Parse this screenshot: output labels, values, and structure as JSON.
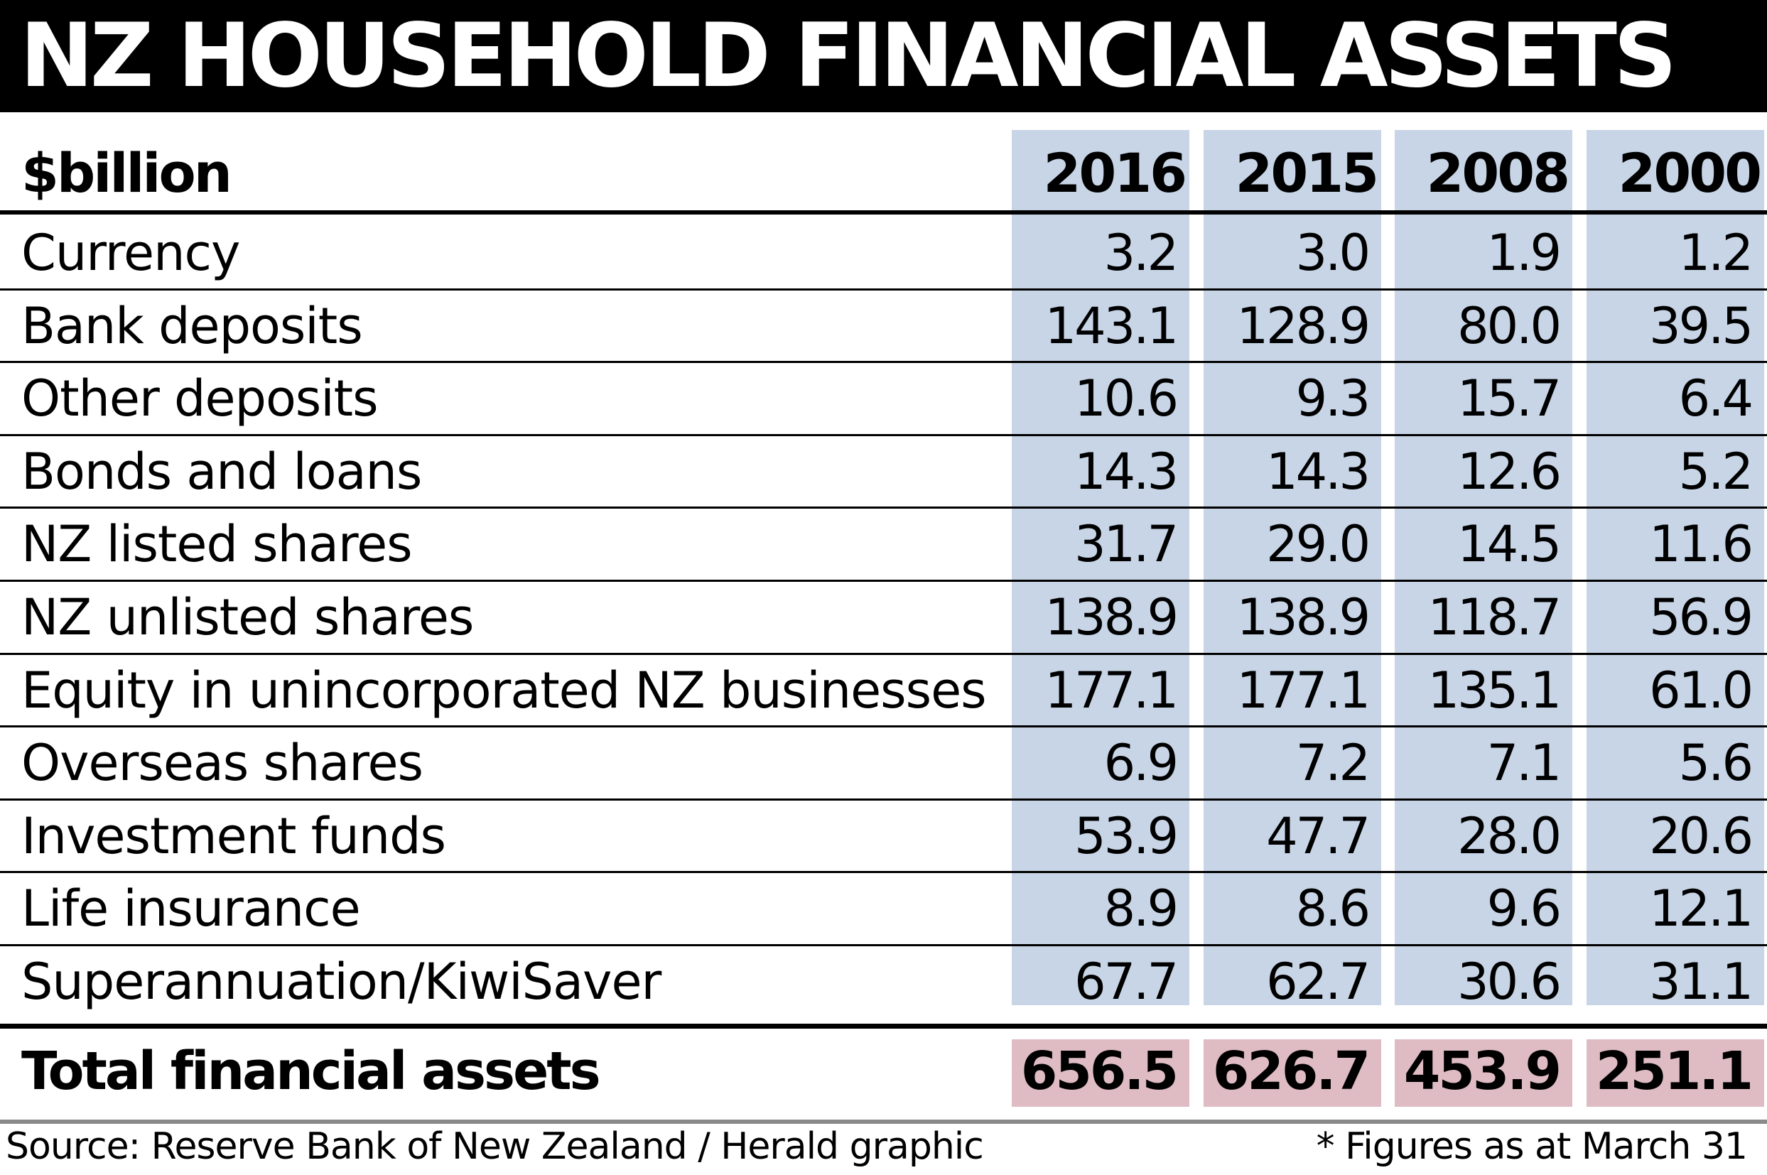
{
  "chart_data": {
    "type": "table",
    "title": "NZ HOUSEHOLD FINANCIAL ASSETS",
    "unit_label": "$billion",
    "columns": [
      "2016",
      "2015",
      "2008",
      "2000"
    ],
    "rows": [
      {
        "label": "Currency",
        "values": [
          "3.2",
          "3.0",
          "1.9",
          "1.2"
        ]
      },
      {
        "label": "Bank deposits",
        "values": [
          "143.1",
          "128.9",
          "80.0",
          "39.5"
        ]
      },
      {
        "label": "Other deposits",
        "values": [
          "10.6",
          "9.3",
          "15.7",
          "6.4"
        ]
      },
      {
        "label": "Bonds and loans",
        "values": [
          "14.3",
          "14.3",
          "12.6",
          "5.2"
        ]
      },
      {
        "label": "NZ listed shares",
        "values": [
          "31.7",
          "29.0",
          "14.5",
          "11.6"
        ]
      },
      {
        "label": "NZ unlisted shares",
        "values": [
          "138.9",
          "138.9",
          "118.7",
          "56.9"
        ]
      },
      {
        "label": "Equity in unincorporated NZ businesses",
        "values": [
          "177.1",
          "177.1",
          "135.1",
          "61.0"
        ]
      },
      {
        "label": "Overseas shares",
        "values": [
          "6.9",
          "7.2",
          "7.1",
          "5.6"
        ]
      },
      {
        "label": "Investment funds",
        "values": [
          "53.9",
          "47.7",
          "28.0",
          "20.6"
        ]
      },
      {
        "label": "Life insurance",
        "values": [
          "8.9",
          "8.6",
          "9.6",
          "12.1"
        ]
      },
      {
        "label": "Superannuation/KiwiSaver",
        "values": [
          "67.7",
          "62.7",
          "30.6",
          "31.1"
        ]
      }
    ],
    "total": {
      "label": "Total financial assets",
      "values": [
        "656.5",
        "626.7",
        "453.9",
        "251.1"
      ]
    },
    "source": "Source: Reserve Bank of New Zealand / Herald graphic",
    "note": "* Figures as at March 31"
  },
  "colors": {
    "title_bg": "#000000",
    "title_text": "#ffffff",
    "column_shade": "#c7d5e6",
    "total_shade": "#dfbcc4",
    "rule": "#000000",
    "footer_rule": "#8a8a8a"
  }
}
